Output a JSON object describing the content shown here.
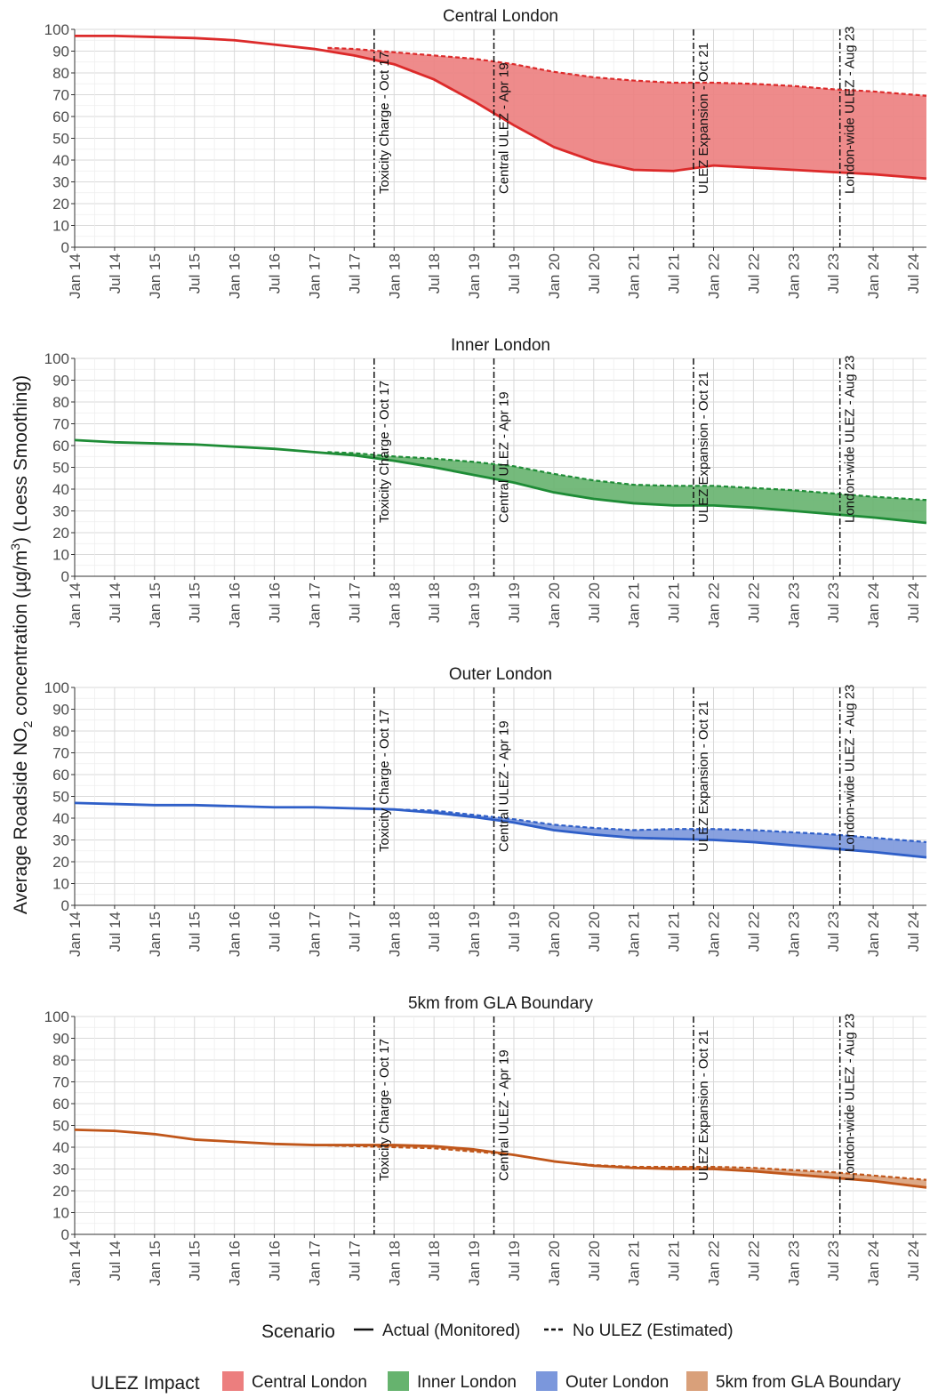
{
  "y_axis_label": {
    "prefix": "Average Roadside NO",
    "sub": "2",
    "middle": " concentration (µg/m",
    "sup": "3",
    "suffix": ") (Loess Smoothing)"
  },
  "legend": {
    "scenario_title": "Scenario",
    "scenario_items": [
      {
        "label": "Actual (Monitored)",
        "style": "solid"
      },
      {
        "label": "No ULEZ (Estimated)",
        "style": "dashed"
      }
    ],
    "impact_title": "ULEZ Impact",
    "impact_items": [
      {
        "label": "Central London",
        "color": "#ec7e7e"
      },
      {
        "label": "Inner London",
        "color": "#66b36e"
      },
      {
        "label": "Outer London",
        "color": "#7b97dc"
      },
      {
        "label": "5km from GLA Boundary",
        "color": "#d9a07a"
      }
    ]
  },
  "chart_data": [
    {
      "type": "line",
      "title": "Central London",
      "line_color": "#dc2a2a",
      "fill_color": "#ec7e7e",
      "xlim": [
        "2014-01",
        "2024-09"
      ],
      "ylim": [
        0,
        100
      ],
      "yticks": [
        0,
        10,
        20,
        30,
        40,
        50,
        60,
        70,
        80,
        90,
        100
      ],
      "xticks": [
        "Jan 14",
        "Jul 14",
        "Jan 15",
        "Jul 15",
        "Jan 16",
        "Jul 16",
        "Jan 17",
        "Jul 17",
        "Jan 18",
        "Jul 18",
        "Jan 19",
        "Jul 19",
        "Jan 20",
        "Jul 20",
        "Jan 21",
        "Jul 21",
        "Jan 22",
        "Jul 22",
        "Jan 23",
        "Jul 23",
        "Jan 24",
        "Jul 24"
      ],
      "events": [
        {
          "date": "2017-10",
          "label": "Toxicity Charge - Oct 17"
        },
        {
          "date": "2019-04",
          "label": "Central ULEZ - Apr 19"
        },
        {
          "date": "2021-10",
          "label": "ULEZ Expansion - Oct 21"
        },
        {
          "date": "2023-08",
          "label": "London-wide ULEZ - Aug 23"
        }
      ],
      "series": [
        {
          "name": "Actual (Monitored)",
          "style": "solid",
          "x": [
            "2014-01",
            "2014-07",
            "2015-01",
            "2015-07",
            "2016-01",
            "2016-07",
            "2017-01",
            "2017-07",
            "2018-01",
            "2018-07",
            "2019-01",
            "2019-07",
            "2020-01",
            "2020-07",
            "2021-01",
            "2021-07",
            "2022-01",
            "2022-07",
            "2023-01",
            "2023-07",
            "2024-01",
            "2024-09"
          ],
          "y": [
            97,
            97,
            96.5,
            96,
            95,
            93,
            91,
            88,
            84,
            77,
            67,
            56,
            46,
            39.5,
            35.5,
            35,
            37.5,
            36.5,
            35.5,
            34.5,
            33.5,
            31.5
          ]
        },
        {
          "name": "No ULEZ (Estimated)",
          "style": "dashed",
          "x": [
            "2017-03",
            "2017-07",
            "2018-01",
            "2018-07",
            "2019-01",
            "2019-07",
            "2020-01",
            "2020-07",
            "2021-01",
            "2021-07",
            "2022-01",
            "2022-07",
            "2023-01",
            "2023-07",
            "2024-01",
            "2024-09"
          ],
          "y": [
            91.5,
            91,
            89.5,
            88,
            86.5,
            84,
            80.5,
            78,
            76.5,
            75.5,
            75.5,
            75,
            74,
            72.5,
            71.5,
            69.5
          ]
        }
      ]
    },
    {
      "type": "line",
      "title": "Inner London",
      "line_color": "#1e8c36",
      "fill_color": "#66b36e",
      "xlim": [
        "2014-01",
        "2024-09"
      ],
      "ylim": [
        0,
        100
      ],
      "yticks": [
        0,
        10,
        20,
        30,
        40,
        50,
        60,
        70,
        80,
        90,
        100
      ],
      "xticks": [
        "Jan 14",
        "Jul 14",
        "Jan 15",
        "Jul 15",
        "Jan 16",
        "Jul 16",
        "Jan 17",
        "Jul 17",
        "Jan 18",
        "Jul 18",
        "Jan 19",
        "Jul 19",
        "Jan 20",
        "Jul 20",
        "Jan 21",
        "Jul 21",
        "Jan 22",
        "Jul 22",
        "Jan 23",
        "Jul 23",
        "Jan 24",
        "Jul 24"
      ],
      "events": [
        {
          "date": "2017-10",
          "label": "Toxicity Charge - Oct 17"
        },
        {
          "date": "2019-04",
          "label": "Central ULEZ - Apr 19"
        },
        {
          "date": "2021-10",
          "label": "ULEZ Expansion - Oct 21"
        },
        {
          "date": "2023-08",
          "label": "London-wide ULEZ - Aug 23"
        }
      ],
      "series": [
        {
          "name": "Actual (Monitored)",
          "style": "solid",
          "x": [
            "2014-01",
            "2014-07",
            "2015-01",
            "2015-07",
            "2016-01",
            "2016-07",
            "2017-01",
            "2017-07",
            "2018-01",
            "2018-07",
            "2019-01",
            "2019-07",
            "2020-01",
            "2020-07",
            "2021-01",
            "2021-07",
            "2022-01",
            "2022-07",
            "2023-01",
            "2023-07",
            "2024-01",
            "2024-09"
          ],
          "y": [
            62.5,
            61.5,
            61,
            60.5,
            59.5,
            58.5,
            57,
            55.5,
            53,
            50,
            46.5,
            43,
            38.5,
            35.5,
            33.5,
            32.5,
            32.5,
            31.5,
            30,
            28.5,
            27,
            24.5
          ]
        },
        {
          "name": "No ULEZ (Estimated)",
          "style": "dashed",
          "x": [
            "2017-03",
            "2017-07",
            "2018-01",
            "2018-07",
            "2019-01",
            "2019-07",
            "2020-01",
            "2020-07",
            "2021-01",
            "2021-07",
            "2022-01",
            "2022-07",
            "2023-01",
            "2023-07",
            "2024-01",
            "2024-09"
          ],
          "y": [
            57,
            56.5,
            55,
            54,
            52.5,
            50.5,
            47,
            44,
            42,
            41.5,
            41.5,
            40.5,
            39.5,
            38,
            36.5,
            35
          ]
        }
      ]
    },
    {
      "type": "line",
      "title": "Outer London",
      "line_color": "#2f5fc8",
      "fill_color": "#7b97dc",
      "xlim": [
        "2014-01",
        "2024-09"
      ],
      "ylim": [
        0,
        100
      ],
      "yticks": [
        0,
        10,
        20,
        30,
        40,
        50,
        60,
        70,
        80,
        90,
        100
      ],
      "xticks": [
        "Jan 14",
        "Jul 14",
        "Jan 15",
        "Jul 15",
        "Jan 16",
        "Jul 16",
        "Jan 17",
        "Jul 17",
        "Jan 18",
        "Jul 18",
        "Jan 19",
        "Jul 19",
        "Jan 20",
        "Jul 20",
        "Jan 21",
        "Jul 21",
        "Jan 22",
        "Jul 22",
        "Jan 23",
        "Jul 23",
        "Jan 24",
        "Jul 24"
      ],
      "events": [
        {
          "date": "2017-10",
          "label": "Toxicity Charge - Oct 17"
        },
        {
          "date": "2019-04",
          "label": "Central ULEZ - Apr 19"
        },
        {
          "date": "2021-10",
          "label": "ULEZ Expansion - Oct 21"
        },
        {
          "date": "2023-08",
          "label": "London-wide ULEZ - Aug 23"
        }
      ],
      "series": [
        {
          "name": "Actual (Monitored)",
          "style": "solid",
          "x": [
            "2014-01",
            "2014-07",
            "2015-01",
            "2015-07",
            "2016-01",
            "2016-07",
            "2017-01",
            "2017-07",
            "2018-01",
            "2018-07",
            "2019-01",
            "2019-07",
            "2020-01",
            "2020-07",
            "2021-01",
            "2021-07",
            "2022-01",
            "2022-07",
            "2023-01",
            "2023-07",
            "2024-01",
            "2024-09"
          ],
          "y": [
            47,
            46.5,
            46,
            46,
            45.5,
            45,
            45,
            44.5,
            44,
            42.5,
            40.5,
            38,
            34.5,
            32.5,
            31,
            30.5,
            30,
            29,
            27.5,
            26,
            24.5,
            22
          ]
        },
        {
          "name": "No ULEZ (Estimated)",
          "style": "dashed",
          "x": [
            "2017-03",
            "2017-07",
            "2018-01",
            "2018-07",
            "2019-01",
            "2019-07",
            "2020-01",
            "2020-07",
            "2021-01",
            "2021-07",
            "2022-01",
            "2022-07",
            "2023-01",
            "2023-07",
            "2024-01",
            "2024-09"
          ],
          "y": [
            44.8,
            44.5,
            44,
            43.5,
            41.5,
            39.5,
            37,
            35.5,
            34.5,
            35,
            35,
            34.5,
            33.5,
            32.5,
            31,
            29
          ]
        }
      ]
    },
    {
      "type": "line",
      "title": "5km from GLA Boundary",
      "line_color": "#c0561a",
      "fill_color": "#d9a07a",
      "xlim": [
        "2014-01",
        "2024-09"
      ],
      "ylim": [
        0,
        100
      ],
      "yticks": [
        0,
        10,
        20,
        30,
        40,
        50,
        60,
        70,
        80,
        90,
        100
      ],
      "xticks": [
        "Jan 14",
        "Jul 14",
        "Jan 15",
        "Jul 15",
        "Jan 16",
        "Jul 16",
        "Jan 17",
        "Jul 17",
        "Jan 18",
        "Jul 18",
        "Jan 19",
        "Jul 19",
        "Jan 20",
        "Jul 20",
        "Jan 21",
        "Jul 21",
        "Jan 22",
        "Jul 22",
        "Jan 23",
        "Jul 23",
        "Jan 24",
        "Jul 24"
      ],
      "events": [
        {
          "date": "2017-10",
          "label": "Toxicity Charge - Oct 17"
        },
        {
          "date": "2019-04",
          "label": "Central ULEZ - Apr 19"
        },
        {
          "date": "2021-10",
          "label": "ULEZ Expansion - Oct 21"
        },
        {
          "date": "2023-08",
          "label": "London-wide ULEZ - Aug 23"
        }
      ],
      "series": [
        {
          "name": "Actual (Monitored)",
          "style": "solid",
          "x": [
            "2014-01",
            "2014-07",
            "2015-01",
            "2015-07",
            "2016-01",
            "2016-07",
            "2017-01",
            "2017-07",
            "2018-01",
            "2018-07",
            "2019-01",
            "2019-07",
            "2020-01",
            "2020-07",
            "2021-01",
            "2021-07",
            "2022-01",
            "2022-07",
            "2023-01",
            "2023-07",
            "2024-01",
            "2024-09"
          ],
          "y": [
            48,
            47.5,
            46,
            43.5,
            42.5,
            41.5,
            41,
            41,
            41,
            40.5,
            39,
            36.5,
            33.5,
            31.5,
            30.5,
            30,
            30,
            29,
            27.5,
            26,
            24.5,
            21.5
          ]
        },
        {
          "name": "No ULEZ (Estimated)",
          "style": "dashed",
          "x": [
            "2017-03",
            "2017-07",
            "2018-01",
            "2018-07",
            "2019-01",
            "2019-07",
            "2020-01",
            "2020-07",
            "2021-01",
            "2021-07",
            "2022-01",
            "2022-07",
            "2023-01",
            "2023-07",
            "2024-01",
            "2024-09"
          ],
          "y": [
            40.8,
            40.5,
            40,
            39.5,
            38,
            36.5,
            33.5,
            31.8,
            31,
            31,
            31,
            30.5,
            29.5,
            28.5,
            27,
            25
          ]
        }
      ]
    }
  ]
}
